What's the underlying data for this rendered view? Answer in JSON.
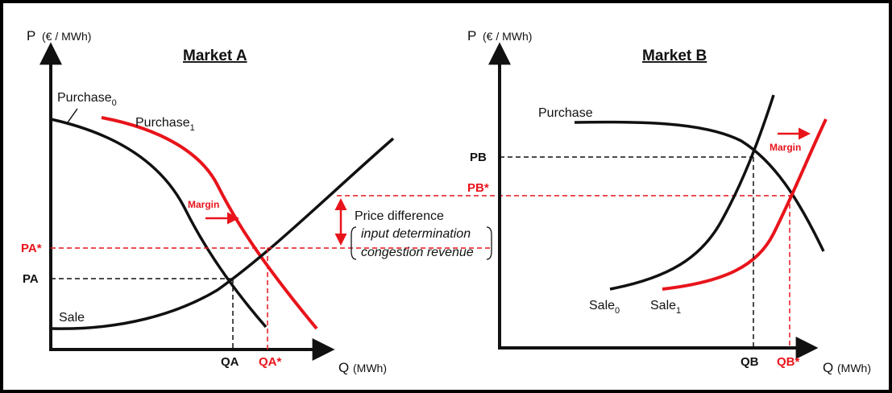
{
  "colors": {
    "red": "#e8141b",
    "black": "#111111",
    "border": "#000000"
  },
  "market_a": {
    "title": "Market A",
    "y_axis_label": "P",
    "y_axis_unit": "(€ / MWh)",
    "x_axis_label": "Q",
    "x_axis_unit": "(MWh)",
    "purchase0": {
      "label": "Purchase",
      "sub": "0"
    },
    "purchase1": {
      "label": "Purchase",
      "sub": "1"
    },
    "sale": "Sale",
    "margin": "Margin",
    "pa": "PA",
    "pa_star": "PA*",
    "qa": "QA",
    "qa_star": "QA*"
  },
  "market_b": {
    "title": "Market B",
    "y_axis_label": "P",
    "y_axis_unit": "(€ / MWh)",
    "x_axis_label": "Q",
    "x_axis_unit": "(MWh)",
    "purchase": "Purchase",
    "sale0": {
      "label": "Sale",
      "sub": "0"
    },
    "sale1": {
      "label": "Sale",
      "sub": "1"
    },
    "margin": "Margin",
    "pb": "PB",
    "pb_star": "PB*",
    "qb": "QB",
    "qb_star": "QB*"
  },
  "price_difference": {
    "label": "Price difference",
    "line1": "input determination",
    "line2": "congestion revenue"
  }
}
